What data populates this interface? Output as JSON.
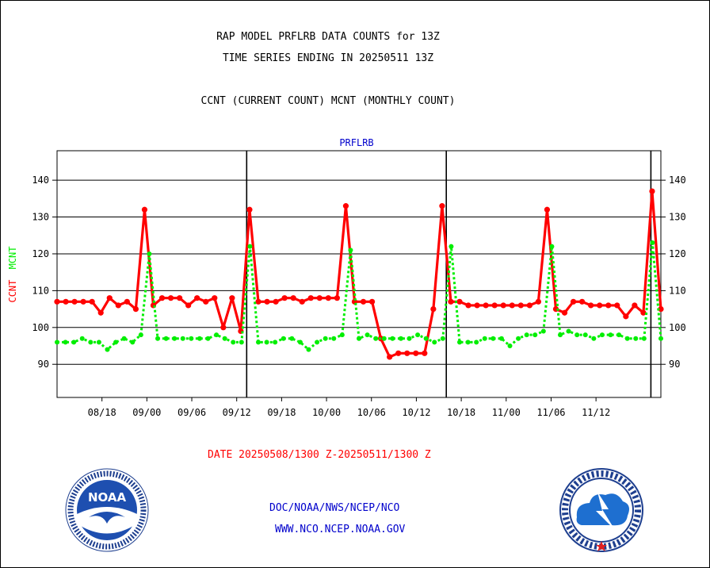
{
  "titles": {
    "line1": "RAP MODEL PRFLRB DATA COUNTS for 13Z",
    "line2": "TIME SERIES ENDING IN 20250511 13Z",
    "line3": "CCNT (CURRENT COUNT) MCNT (MONTHLY COUNT)"
  },
  "footer": {
    "date_range": "DATE 20250508/1300 Z-20250511/1300 Z",
    "org": "DOC/NOAA/NWS/NCEP/NCO",
    "url": "WWW.NCO.NCEP.NOAA.GOV"
  },
  "colors": {
    "ccnt": "#ff0000",
    "mcnt": "#00ee00",
    "panel_title": "#0000cc",
    "footer_blue": "#0000cc"
  },
  "logos": {
    "left": "noaa-logo",
    "right": "national-weather-service-logo"
  },
  "chart_data": {
    "type": "line",
    "title": "PRFLRB",
    "ylabel_series": [
      {
        "text": "CCNT",
        "color": "#ff0000"
      },
      {
        "text": "MCNT",
        "color": "#00ee00"
      }
    ],
    "ylim": [
      81,
      148
    ],
    "yticks": [
      90,
      100,
      110,
      120,
      130,
      140
    ],
    "xlim": [
      0,
      60.5
    ],
    "xticks": [
      {
        "x": 4.5,
        "label": "08/18"
      },
      {
        "x": 9,
        "label": "09/00"
      },
      {
        "x": 13.5,
        "label": "09/06"
      },
      {
        "x": 18,
        "label": "09/12"
      },
      {
        "x": 22.5,
        "label": "09/18"
      },
      {
        "x": 27,
        "label": "10/00"
      },
      {
        "x": 31.5,
        "label": "10/06"
      },
      {
        "x": 36,
        "label": "10/12"
      },
      {
        "x": 40.5,
        "label": "10/18"
      },
      {
        "x": 45,
        "label": "11/00"
      },
      {
        "x": 49.5,
        "label": "11/06"
      },
      {
        "x": 54,
        "label": "11/12"
      }
    ],
    "day_boundaries": [
      19,
      39,
      59.5
    ],
    "grid": true,
    "series": [
      {
        "name": "CCNT",
        "color": "#ff0000",
        "style": "solid",
        "values": [
          107,
          107,
          107,
          107,
          107,
          104,
          108,
          106,
          107,
          105,
          132,
          106,
          108,
          108,
          108,
          106,
          108,
          107,
          108,
          100,
          108,
          99,
          132,
          107,
          107,
          107,
          108,
          108,
          107,
          108,
          108,
          108,
          108,
          133,
          107,
          107,
          107,
          97,
          92,
          93,
          93,
          93,
          93,
          105,
          133,
          107,
          107,
          106,
          106,
          106,
          106,
          106,
          106,
          106,
          106,
          107,
          132,
          105,
          104,
          107,
          107,
          106,
          106,
          106,
          106,
          103,
          106,
          104,
          137,
          105
        ]
      },
      {
        "name": "MCNT",
        "color": "#00ee00",
        "style": "dotted",
        "values": [
          96,
          96,
          96,
          97,
          96,
          96,
          94,
          96,
          97,
          96,
          98,
          120,
          97,
          97,
          97,
          97,
          97,
          97,
          97,
          98,
          97,
          96,
          96,
          122,
          96,
          96,
          96,
          97,
          97,
          96,
          94,
          96,
          97,
          97,
          98,
          121,
          97,
          98,
          97,
          97,
          97,
          97,
          97,
          98,
          97,
          96,
          97,
          122,
          96,
          96,
          96,
          97,
          97,
          97,
          95,
          97,
          98,
          98,
          99,
          122,
          98,
          99,
          98,
          98,
          97,
          98,
          98,
          98,
          97,
          97,
          97,
          123,
          97
        ]
      }
    ]
  }
}
